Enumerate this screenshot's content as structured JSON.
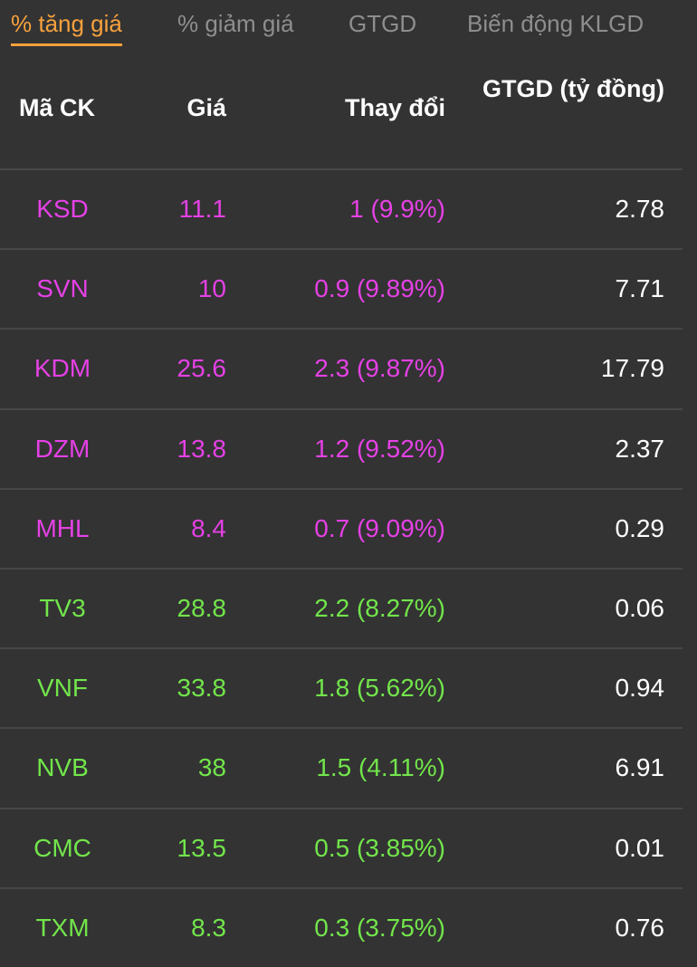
{
  "tabs": [
    {
      "label": "% tăng giá",
      "active": true
    },
    {
      "label": "% giảm giá",
      "active": false
    },
    {
      "label": "GTGD",
      "active": false
    },
    {
      "label": "Biến động KLGD",
      "active": false
    }
  ],
  "columns": {
    "code": "Mã CK",
    "price": "Giá",
    "change": "Thay đổi",
    "value": "GTGD (tỷ đồng)"
  },
  "colors": {
    "ceiling": "#e541e5",
    "increase": "#72e54b",
    "active_tab": "#f7a13d"
  },
  "rows": [
    {
      "code": "KSD",
      "price": "11.1",
      "change": "1 (9.9%)",
      "value": "2.78",
      "status": "ceiling"
    },
    {
      "code": "SVN",
      "price": "10",
      "change": "0.9 (9.89%)",
      "value": "7.71",
      "status": "ceiling"
    },
    {
      "code": "KDM",
      "price": "25.6",
      "change": "2.3 (9.87%)",
      "value": "17.79",
      "status": "ceiling"
    },
    {
      "code": "DZM",
      "price": "13.8",
      "change": "1.2 (9.52%)",
      "value": "2.37",
      "status": "ceiling"
    },
    {
      "code": "MHL",
      "price": "8.4",
      "change": "0.7 (9.09%)",
      "value": "0.29",
      "status": "ceiling"
    },
    {
      "code": "TV3",
      "price": "28.8",
      "change": "2.2 (8.27%)",
      "value": "0.06",
      "status": "increase"
    },
    {
      "code": "VNF",
      "price": "33.8",
      "change": "1.8 (5.62%)",
      "value": "0.94",
      "status": "increase"
    },
    {
      "code": "NVB",
      "price": "38",
      "change": "1.5 (4.11%)",
      "value": "6.91",
      "status": "increase"
    },
    {
      "code": "CMC",
      "price": "13.5",
      "change": "0.5 (3.85%)",
      "value": "0.01",
      "status": "increase"
    },
    {
      "code": "TXM",
      "price": "8.3",
      "change": "0.3 (3.75%)",
      "value": "0.76",
      "status": "increase"
    }
  ]
}
